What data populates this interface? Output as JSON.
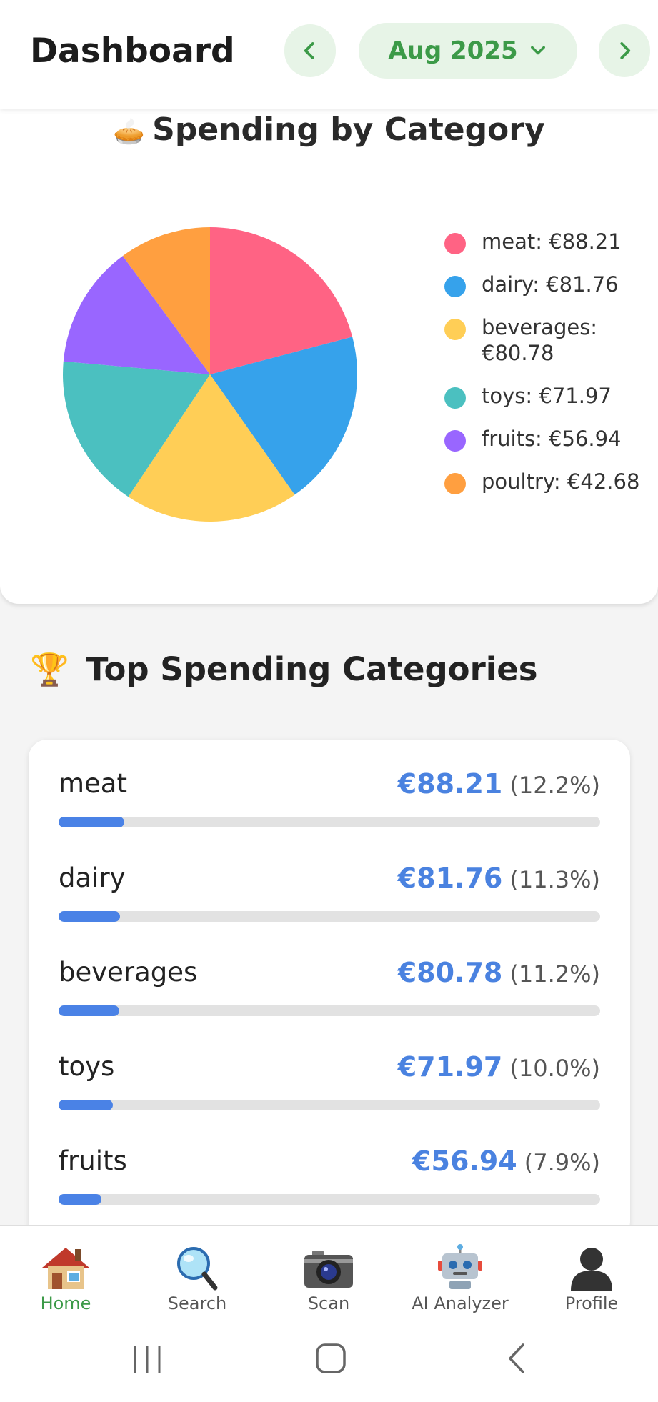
{
  "header": {
    "title": "Dashboard",
    "month": "Aug 2025"
  },
  "pie_card": {
    "emoji": "🥧",
    "title": "Spending by Category"
  },
  "chart_data": {
    "type": "pie",
    "labels": [
      "meat: €88.21",
      "dairy: €81.76",
      "beverages: €80.78",
      "toys: €71.97",
      "fruits: €56.94",
      "poultry: €42.68"
    ],
    "categories": [
      "meat",
      "dairy",
      "beverages",
      "toys",
      "fruits",
      "poultry"
    ],
    "values": [
      88.21,
      81.76,
      80.78,
      71.97,
      56.94,
      42.68
    ],
    "colors": [
      "#ff6384",
      "#36a2eb",
      "#ffce56",
      "#4bc0c0",
      "#9966ff",
      "#ff9f40"
    ],
    "legend": "right"
  },
  "top_section": {
    "emoji": "🏆",
    "title": "Top Spending Categories"
  },
  "top_categories": [
    {
      "name": "meat",
      "amount": "€88.21",
      "pct": "(12.2%)",
      "pct_value": 12.2
    },
    {
      "name": "dairy",
      "amount": "€81.76",
      "pct": "(11.3%)",
      "pct_value": 11.3
    },
    {
      "name": "beverages",
      "amount": "€80.78",
      "pct": "(11.2%)",
      "pct_value": 11.2
    },
    {
      "name": "toys",
      "amount": "€71.97",
      "pct": "(10.0%)",
      "pct_value": 10.0
    },
    {
      "name": "fruits",
      "amount": "€56.94",
      "pct": "(7.9%)",
      "pct_value": 7.9
    }
  ],
  "bottom_nav": {
    "items": [
      {
        "label": "Home",
        "icon": "house-icon",
        "active": true
      },
      {
        "label": "Search",
        "icon": "magnifier-icon",
        "active": false
      },
      {
        "label": "Scan",
        "icon": "camera-icon",
        "active": false
      },
      {
        "label": "AI Analyzer",
        "icon": "robot-icon",
        "active": false
      },
      {
        "label": "Profile",
        "icon": "person-silhouette-icon",
        "active": false
      }
    ]
  },
  "system_nav": {
    "icons": [
      "recent-apps-icon",
      "home-button-icon",
      "back-icon"
    ]
  }
}
